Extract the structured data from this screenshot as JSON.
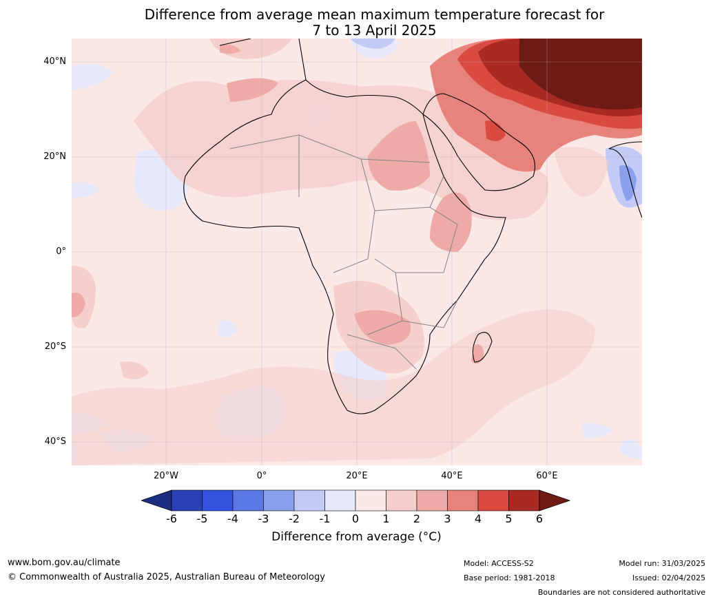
{
  "title": {
    "line1": "Difference from average mean maximum temperature forecast for",
    "line2": "7 to 13 April 2025"
  },
  "map": {
    "lat_ticks": [
      {
        "label": "40°N",
        "lat": 40
      },
      {
        "label": "20°N",
        "lat": 20
      },
      {
        "label": "0°",
        "lat": 0
      },
      {
        "label": "20°S",
        "lat": -20
      },
      {
        "label": "40°S",
        "lat": -40
      }
    ],
    "lon_ticks": [
      {
        "label": "20°W",
        "lon": -20
      },
      {
        "label": "0°",
        "lon": 0
      },
      {
        "label": "20°E",
        "lon": 20
      },
      {
        "label": "40°E",
        "lon": 40
      },
      {
        "label": "60°E",
        "lon": 60
      }
    ],
    "extent": {
      "lon_min": -40,
      "lon_max": 80,
      "lat_min": -45,
      "lat_max": 45
    },
    "gridlines": true
  },
  "colorbar": {
    "labels": [
      "-6",
      "-5",
      "-4",
      "-3",
      "-2",
      "-1",
      "0",
      "1",
      "2",
      "3",
      "4",
      "5",
      "6"
    ],
    "colors": [
      "#1c2e82",
      "#2a40b5",
      "#3352e0",
      "#5a78e3",
      "#8aa0ec",
      "#c2caf5",
      "#e8eafb",
      "#fbe9e7",
      "#f5cfcc",
      "#eeaaa6",
      "#e8837c",
      "#d94b40",
      "#a82a22",
      "#6e1b16"
    ],
    "title": "Difference from average (°C)"
  },
  "footer": {
    "website": "www.bom.gov.au/climate",
    "copyright": "© Commonwealth of Australia 2025, Australian Bureau of Meteorology",
    "model": "Model: ACCESS-S2",
    "base_period": "Base period: 1981-2018",
    "model_run": "Model run: 31/03/2025",
    "issued": "Issued: 02/04/2025",
    "disclaimer": "Boundaries are not considered authoritative"
  }
}
